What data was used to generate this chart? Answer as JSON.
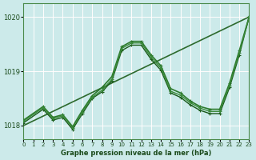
{
  "background_color": "#cceaea",
  "grid_color_white": "#ffffff",
  "grid_color_pink": "#e8a0a0",
  "line_colors": [
    "#2d6a2d",
    "#2d6a2d",
    "#1a5a1a",
    "#3a8a3a"
  ],
  "xlabel": "Graphe pression niveau de la mer (hPa)",
  "xlim": [
    0,
    23
  ],
  "ylim": [
    1017.75,
    1020.25
  ],
  "yticks": [
    1018,
    1019,
    1020
  ],
  "xticks": [
    0,
    1,
    2,
    3,
    4,
    5,
    6,
    7,
    8,
    9,
    10,
    11,
    12,
    13,
    14,
    15,
    16,
    17,
    18,
    19,
    20,
    21,
    22,
    23
  ],
  "series": [
    {
      "x": [
        0,
        23
      ],
      "y": [
        1018.0,
        1020.0
      ],
      "color": "#2d6a2d",
      "lw": 1.2,
      "marker": false
    },
    {
      "x": [
        0,
        2,
        3,
        4,
        5,
        6,
        7,
        8,
        9,
        10,
        11,
        12,
        13,
        14,
        15,
        16,
        17,
        18,
        19,
        20,
        21,
        22,
        23
      ],
      "y": [
        1018.1,
        1018.35,
        1018.15,
        1018.2,
        1017.98,
        1018.28,
        1018.55,
        1018.7,
        1018.9,
        1019.45,
        1019.55,
        1019.55,
        1019.3,
        1019.1,
        1018.68,
        1018.6,
        1018.45,
        1018.35,
        1018.3,
        1018.3,
        1018.78,
        1019.38,
        1020.0
      ],
      "color": "#2d7a2d",
      "lw": 1.2,
      "marker": true
    },
    {
      "x": [
        0,
        2,
        3,
        4,
        5,
        6,
        7,
        8,
        9,
        10,
        11,
        12,
        13,
        14,
        15,
        16,
        17,
        18,
        19,
        20,
        21,
        22,
        23
      ],
      "y": [
        1018.05,
        1018.3,
        1018.1,
        1018.15,
        1017.93,
        1018.22,
        1018.5,
        1018.62,
        1018.82,
        1019.38,
        1019.48,
        1019.48,
        1019.22,
        1019.02,
        1018.6,
        1018.52,
        1018.38,
        1018.28,
        1018.22,
        1018.22,
        1018.7,
        1019.3,
        1020.0
      ],
      "color": "#1a5a1a",
      "lw": 1.0,
      "marker": true
    },
    {
      "x": [
        0,
        2,
        3,
        4,
        5,
        6,
        7,
        8,
        9,
        10,
        11,
        12,
        13,
        14,
        15,
        16,
        17,
        18,
        19,
        20,
        21,
        22,
        23
      ],
      "y": [
        1018.08,
        1018.33,
        1018.13,
        1018.18,
        1017.96,
        1018.25,
        1018.52,
        1018.65,
        1018.85,
        1019.42,
        1019.52,
        1019.52,
        1019.26,
        1019.06,
        1018.63,
        1018.56,
        1018.42,
        1018.32,
        1018.26,
        1018.26,
        1018.74,
        1019.34,
        1020.0
      ],
      "color": "#3a8a3a",
      "lw": 1.0,
      "marker": true
    }
  ]
}
